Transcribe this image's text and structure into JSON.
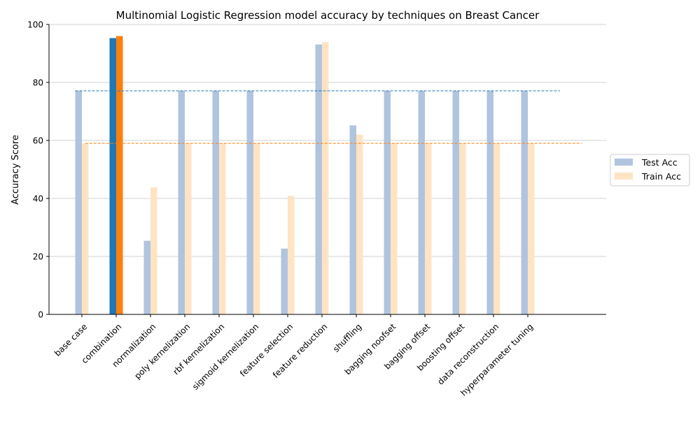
{
  "chart_data": {
    "type": "bar",
    "title": "Multinomial Logistic Regression model accuracy by techniques on Breast Cancer",
    "xlabel": "",
    "ylabel": "Accuracy Score",
    "ylim": [
      0,
      100
    ],
    "yticks": [
      0,
      20,
      40,
      60,
      80,
      100
    ],
    "grid": "horizontal",
    "legend_position": "right",
    "categories": [
      "base case",
      "combination",
      "normalization",
      "poly kernelization",
      "rbf kernelization",
      "sigmoid kernelization",
      "feature selection",
      "feature reduction",
      "shuffling",
      "bagging noofset",
      "bagging offset",
      "boosting offset",
      "data reconstruction",
      "hyperparameter tuning"
    ],
    "series": [
      {
        "name": "Test Acc",
        "color": "#b0c4de",
        "highlight_color": "#1f77b4",
        "values": [
          77.1,
          95.3,
          25.4,
          77.1,
          77.1,
          77.1,
          22.7,
          93.1,
          65.2,
          77.1,
          77.1,
          77.1,
          77.1,
          77.1
        ]
      },
      {
        "name": "Train Acc",
        "color": "#ffe4c4",
        "highlight_color": "#ff7f0e",
        "values": [
          59.0,
          96.0,
          43.8,
          59.0,
          59.0,
          59.0,
          40.9,
          93.9,
          62.0,
          59.0,
          59.0,
          59.0,
          59.0,
          59.0
        ]
      }
    ],
    "highlight_category": "combination",
    "baselines": [
      {
        "series": "Test Acc",
        "value": 77.1,
        "color": "#1f77b4"
      },
      {
        "series": "Train Acc",
        "value": 59.0,
        "color": "#ff7f0e"
      }
    ]
  }
}
